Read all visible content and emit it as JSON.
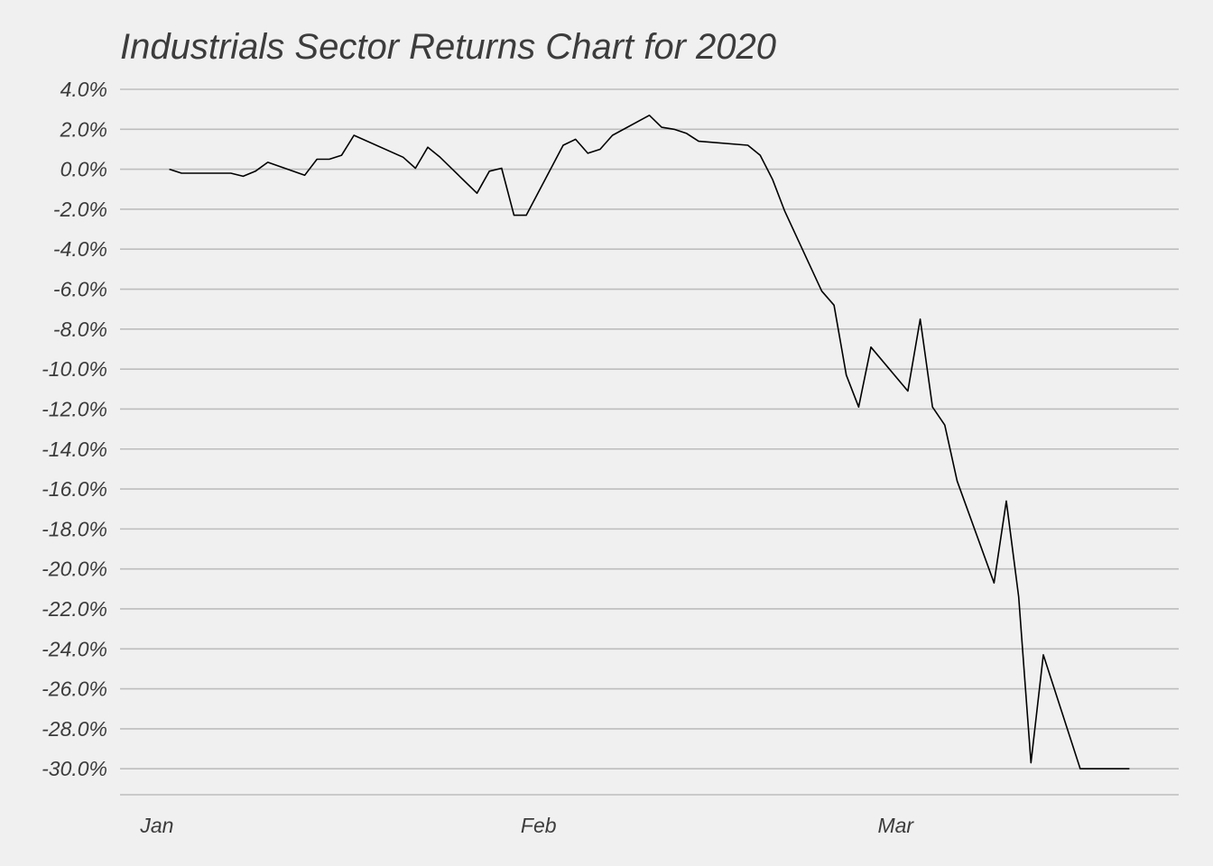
{
  "chart_data": {
    "type": "line",
    "title": "Industrials Sector Returns Chart for 2020",
    "xlabel": "",
    "ylabel": "",
    "x_tick_labels": [
      {
        "label": "Jan",
        "date": "2020-01-01"
      },
      {
        "label": "Feb",
        "date": "2020-02-01"
      },
      {
        "label": "Mar",
        "date": "2020-03-01"
      }
    ],
    "y_ticks": [
      4,
      2,
      0,
      -2,
      -4,
      -6,
      -8,
      -10,
      -12,
      -14,
      -16,
      -18,
      -20,
      -22,
      -24,
      -26,
      -28,
      -30
    ],
    "y_tick_labels": [
      "4.0%",
      "2.0%",
      "0.0%",
      "-2.0%",
      "-4.0%",
      "-6.0%",
      "-8.0%",
      "-10.0%",
      "-12.0%",
      "-14.0%",
      "-16.0%",
      "-18.0%",
      "-20.0%",
      "-22.0%",
      "-24.0%",
      "-26.0%",
      "-28.0%",
      "-30.0%"
    ],
    "xlim": [
      "2019-12-29",
      "2020-03-24"
    ],
    "ylim": [
      -31.3,
      4.0
    ],
    "grid": "horizontal",
    "legend": "none",
    "line_color": "#000000",
    "grid_color": "#bdbdbd",
    "background_color": "#f0f0f0",
    "text_color": "#3c3c3c",
    "series": [
      {
        "x": [
          "2020-01-02",
          "2020-01-03",
          "2020-01-06",
          "2020-01-07",
          "2020-01-08",
          "2020-01-09",
          "2020-01-10",
          "2020-01-13",
          "2020-01-14",
          "2020-01-15",
          "2020-01-16",
          "2020-01-17",
          "2020-01-21",
          "2020-01-22",
          "2020-01-23",
          "2020-01-24",
          "2020-01-27",
          "2020-01-28",
          "2020-01-29",
          "2020-01-30",
          "2020-01-31",
          "2020-02-03",
          "2020-02-04",
          "2020-02-05",
          "2020-02-06",
          "2020-02-07",
          "2020-02-10",
          "2020-02-11",
          "2020-02-12",
          "2020-02-13",
          "2020-02-14",
          "2020-02-18",
          "2020-02-19",
          "2020-02-20",
          "2020-02-21",
          "2020-02-24",
          "2020-02-25",
          "2020-02-26",
          "2020-02-27",
          "2020-02-28",
          "2020-03-02",
          "2020-03-03",
          "2020-03-04",
          "2020-03-05",
          "2020-03-06",
          "2020-03-09",
          "2020-03-10",
          "2020-03-11",
          "2020-03-12",
          "2020-03-13",
          "2020-03-16",
          "2020-03-17",
          "2020-03-18",
          "2020-03-19",
          "2020-03-20"
        ],
        "values": [
          0.0,
          -0.2,
          -0.2,
          -0.2,
          -0.35,
          -0.1,
          0.35,
          -0.3,
          0.5,
          0.5,
          0.7,
          1.7,
          0.6,
          0.05,
          1.1,
          0.6,
          -1.2,
          -0.1,
          0.05,
          -2.3,
          -2.3,
          1.2,
          1.5,
          0.8,
          1.0,
          1.7,
          2.7,
          2.1,
          2.0,
          1.8,
          1.4,
          1.2,
          0.7,
          -0.5,
          -2.1,
          -6.1,
          -6.8,
          -10.3,
          -11.9,
          -8.9,
          -11.1,
          -7.5,
          -11.9,
          -12.8,
          -15.6,
          -20.7,
          -16.6,
          -21.4,
          -29.7,
          -24.3,
          -30.0,
          -30.0,
          -30.0,
          -30.0,
          -30.0
        ]
      }
    ]
  }
}
